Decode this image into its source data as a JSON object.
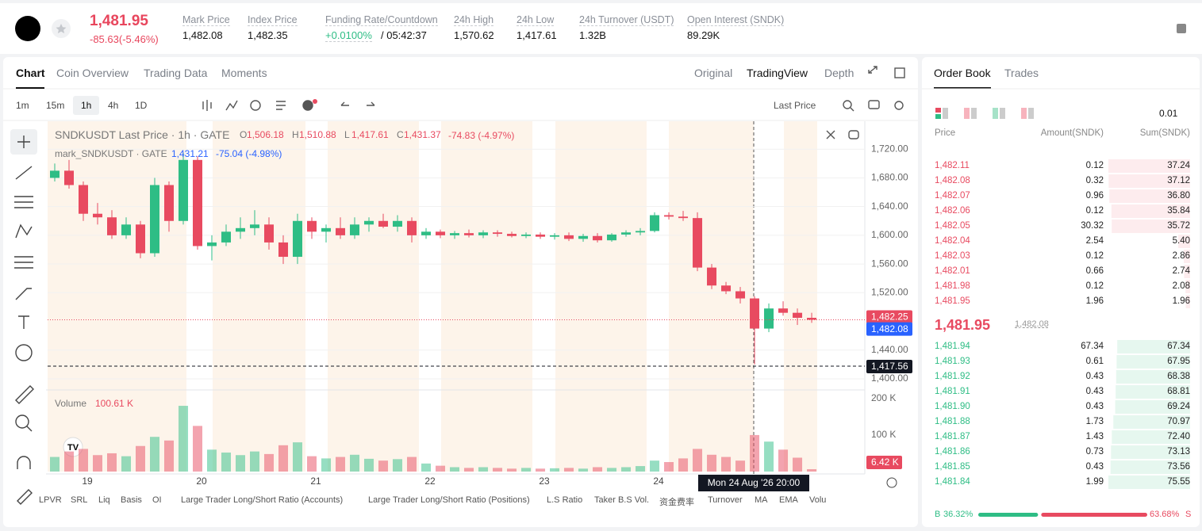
{
  "header": {
    "price": "1,481.95",
    "change": "-85.63(-5.46%)",
    "stats": [
      {
        "label": "Mark Price",
        "value": "1,482.08"
      },
      {
        "label": "Index Price",
        "value": "1,482.35"
      },
      {
        "label": "Funding Rate/Countdown",
        "value": "+0.0100%",
        "countdown": "/ 05:42:37"
      },
      {
        "label": "24h High",
        "value": "1,570.62"
      },
      {
        "label": "24h Low",
        "value": "1,417.61"
      },
      {
        "label": "24h Turnover (USDT)",
        "value": "1.32B"
      },
      {
        "label": "Open Interest (SNDK)",
        "value": "89.29K"
      }
    ]
  },
  "chart_tabs": [
    "Chart",
    "Coin Overview",
    "Trading Data",
    "Moments"
  ],
  "view_tabs": [
    "Original",
    "TradingView",
    "Depth"
  ],
  "intervals": [
    "1m",
    "15m",
    "1h",
    "4h",
    "1D"
  ],
  "price_type": "Last Price",
  "chart_data": {
    "type": "candlestick",
    "title": "SNDKUSDT Last Price · 1h · GATE",
    "ohlc_legend": [
      {
        "label": "O",
        "value": "1,506.18"
      },
      {
        "label": "H",
        "value": "1,510.88"
      },
      {
        "label": "L",
        "value": "1,417.61"
      },
      {
        "label": "C",
        "value": "1,431.37"
      }
    ],
    "legend_change": "-74.83 (-4.97%)",
    "mark_legend": {
      "name": "mark_SNDKUSDT · GATE",
      "value": "1,431.21",
      "change": "-75.04 (-4.98%)"
    },
    "up_color": "#2ebd85",
    "down_color": "#e84a60",
    "ylim": [
      1386.7,
      1758.9
    ],
    "yticks": [
      {
        "value": 1400,
        "label": "1,400.00"
      },
      {
        "value": 1440,
        "label": "1,440.00"
      },
      {
        "value": 1520,
        "label": "1,520.00"
      },
      {
        "value": 1560,
        "label": "1,560.00"
      },
      {
        "value": 1600,
        "label": "1,600.00"
      },
      {
        "value": 1640,
        "label": "1,640.00"
      },
      {
        "value": 1680,
        "label": "1,680.00"
      },
      {
        "value": 1720,
        "label": "1,720.00"
      }
    ],
    "xlim": [
      -0.5,
      56.72
    ],
    "xticks": [
      {
        "value": 2.28,
        "label": "19"
      },
      {
        "value": 10.28,
        "label": "20"
      },
      {
        "value": 18.28,
        "label": "21"
      },
      {
        "value": 26.28,
        "label": "22"
      },
      {
        "value": 34.28,
        "label": "23"
      },
      {
        "value": 42.28,
        "label": "24"
      }
    ],
    "open": [
      1680,
      1690,
      1670,
      1630,
      1625,
      1600,
      1615,
      1575,
      1670,
      1620,
      1705,
      1585,
      1590,
      1605,
      1610,
      1615,
      1590,
      1570,
      1620,
      1605,
      1610,
      1600,
      1615,
      1620,
      1612,
      1620,
      1600,
      1605,
      1600,
      1603,
      1600,
      1604,
      1602,
      1599,
      1601,
      1598,
      1600,
      1595,
      1599,
      1593,
      1601,
      1604,
      1606,
      1628,
      1626,
      1624,
      1555,
      1530,
      1522,
      1512,
      1470,
      1498,
      1492,
      1485
    ],
    "high": [
      1700,
      1705,
      1675,
      1645,
      1635,
      1625,
      1620,
      1680,
      1675,
      1715,
      1710,
      1600,
      1615,
      1625,
      1635,
      1625,
      1600,
      1630,
      1625,
      1615,
      1625,
      1625,
      1625,
      1630,
      1628,
      1625,
      1610,
      1608,
      1606,
      1608,
      1607,
      1607,
      1605,
      1604,
      1604,
      1603,
      1604,
      1602,
      1603,
      1603,
      1607,
      1610,
      1632,
      1632,
      1634,
      1632,
      1560,
      1535,
      1528,
      1515,
      1505,
      1508,
      1498,
      1492
    ],
    "low": [
      1675,
      1665,
      1620,
      1615,
      1595,
      1595,
      1568,
      1570,
      1605,
      1615,
      1580,
      1565,
      1585,
      1595,
      1600,
      1580,
      1560,
      1560,
      1595,
      1590,
      1595,
      1595,
      1605,
      1610,
      1605,
      1590,
      1595,
      1596,
      1595,
      1597,
      1596,
      1598,
      1597,
      1596,
      1595,
      1594,
      1592,
      1591,
      1590,
      1591,
      1598,
      1600,
      1604,
      1622,
      1620,
      1550,
      1525,
      1518,
      1505,
      1420,
      1465,
      1488,
      1475,
      1478
    ],
    "close": [
      1690,
      1670,
      1630,
      1625,
      1600,
      1615,
      1575,
      1670,
      1620,
      1705,
      1585,
      1590,
      1605,
      1610,
      1615,
      1590,
      1570,
      1620,
      1605,
      1610,
      1600,
      1615,
      1620,
      1612,
      1620,
      1600,
      1605,
      1600,
      1603,
      1600,
      1604,
      1602,
      1599,
      1601,
      1598,
      1600,
      1595,
      1599,
      1593,
      1601,
      1604,
      1606,
      1628,
      1626,
      1624,
      1555,
      1530,
      1522,
      1512,
      1470,
      1498,
      1492,
      1485,
      1482.25
    ],
    "price_markers": [
      {
        "value": 1482.25,
        "label": "1,482.25",
        "color": "#e84a60"
      },
      {
        "value": 1482.08,
        "label": "1,482.08",
        "color": "#2962ff"
      },
      {
        "value": 1417.56,
        "label": "1,417.56",
        "color": "#131722"
      }
    ],
    "crosshair_time": "Mon 24 Aug '26   20:00",
    "volume": {
      "title": "Volume",
      "current": "100.61 K",
      "ylim": [
        0,
        217000
      ],
      "yticks": [
        {
          "value": 100000,
          "label": "100 K"
        },
        {
          "value": 200000,
          "label": "200 K"
        }
      ],
      "values": [
        40000,
        55000,
        62000,
        45000,
        50000,
        42000,
        70000,
        95000,
        85000,
        180000,
        125000,
        60000,
        52000,
        45000,
        55000,
        48000,
        72000,
        80000,
        42000,
        36000,
        40000,
        46000,
        35000,
        30000,
        34000,
        40000,
        22000,
        16000,
        12000,
        10000,
        12000,
        10000,
        8000,
        10000,
        8000,
        9000,
        10000,
        8000,
        12000,
        10000,
        12000,
        15000,
        30000,
        26000,
        36000,
        62000,
        46000,
        40000,
        30000,
        100000,
        82000,
        60000,
        38000,
        6420
      ],
      "last_marker": {
        "value": 6420,
        "label": "6.42 K"
      }
    }
  },
  "indicators": [
    "LPVR",
    "SRL",
    "Liq",
    "Basis",
    "OI",
    "Large Trader Long/Short Ratio (Accounts)",
    "Large Trader Long/Short Ratio (Positions)",
    "L.S Ratio",
    "Taker B.S Vol.",
    "资金费率",
    "Turnover",
    "MA",
    "EMA",
    "Volu"
  ],
  "order_book": {
    "tabs": [
      "Order Book",
      "Trades"
    ],
    "tick_size": "0.01",
    "headers": [
      "Price",
      "Amount(SNDK)",
      "Sum(SNDK)"
    ],
    "asks": [
      {
        "price": "1,482.11",
        "amount": 0.12,
        "sum": 37.24
      },
      {
        "price": "1,482.08",
        "amount": 0.32,
        "sum": 37.12
      },
      {
        "price": "1,482.07",
        "amount": 0.96,
        "sum": 36.8
      },
      {
        "price": "1,482.06",
        "amount": 0.12,
        "sum": 35.84
      },
      {
        "price": "1,482.05",
        "amount": 30.32,
        "sum": 35.72
      },
      {
        "price": "1,482.04",
        "amount": 2.54,
        "sum": 5.4
      },
      {
        "price": "1,482.03",
        "amount": 0.12,
        "sum": 2.86
      },
      {
        "price": "1,482.01",
        "amount": 0.66,
        "sum": 2.74
      },
      {
        "price": "1,481.98",
        "amount": 0.12,
        "sum": 2.08
      },
      {
        "price": "1,481.95",
        "amount": 1.96,
        "sum": 1.96
      }
    ],
    "sum_labels_asks": [
      "37.24",
      "37.12",
      "36.80",
      "35.84",
      "35.72",
      "5.40",
      "2.86",
      "2.74",
      "2.08",
      "1.96"
    ],
    "last_price": "1,481.95",
    "mark_price": "1,482.08",
    "bids": [
      {
        "price": "1,481.94",
        "amount": 67.34,
        "sum": 67.34
      },
      {
        "price": "1,481.93",
        "amount": 0.61,
        "sum": 67.95
      },
      {
        "price": "1,481.92",
        "amount": 0.43,
        "sum": 68.38
      },
      {
        "price": "1,481.91",
        "amount": 0.43,
        "sum": 68.81
      },
      {
        "price": "1,481.90",
        "amount": 0.43,
        "sum": 69.24
      },
      {
        "price": "1,481.88",
        "amount": 1.73,
        "sum": 70.97
      },
      {
        "price": "1,481.87",
        "amount": 1.43,
        "sum": 72.4
      },
      {
        "price": "1,481.86",
        "amount": 0.73,
        "sum": 73.13
      },
      {
        "price": "1,481.85",
        "amount": 0.43,
        "sum": 73.56
      },
      {
        "price": "1,481.84",
        "amount": 1.99,
        "sum": 75.55
      }
    ],
    "sum_labels_bids": [
      "67.34",
      "67.95",
      "68.38",
      "68.81",
      "69.24",
      "70.97",
      "72.40",
      "73.13",
      "73.56",
      "75.55"
    ],
    "buy_label": "B",
    "buy_ratio": {
      "value": 36.32,
      "label": "36.32%"
    },
    "sell_ratio": {
      "value": 63.68,
      "label": "63.68%"
    },
    "sell_label": "S"
  }
}
